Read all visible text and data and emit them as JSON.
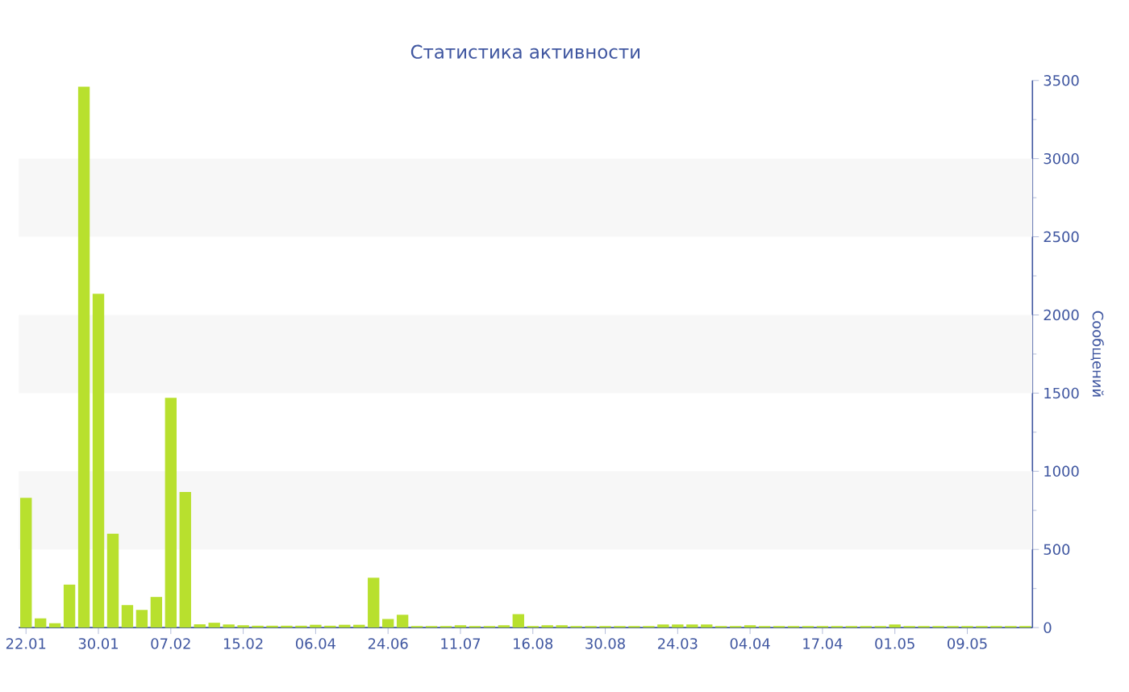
{
  "chart_data": {
    "type": "bar",
    "title": "Статистика активности",
    "ylabel": "Сообщений",
    "categories": [
      "22.01",
      null,
      null,
      null,
      null,
      "30.01",
      null,
      null,
      null,
      null,
      "07.02",
      null,
      null,
      null,
      null,
      "15.02",
      null,
      null,
      null,
      null,
      "06.04",
      null,
      null,
      null,
      null,
      "24.06",
      null,
      null,
      null,
      null,
      "11.07",
      null,
      null,
      null,
      null,
      "16.08",
      null,
      null,
      null,
      null,
      "30.08",
      null,
      null,
      null,
      null,
      "24.03",
      null,
      null,
      null,
      null,
      "04.04",
      null,
      null,
      null,
      null,
      "17.04",
      null,
      null,
      null,
      null,
      "01.05",
      null,
      null,
      null,
      null,
      "09.05",
      null,
      null,
      null,
      null
    ],
    "values": [
      830,
      59,
      28,
      275,
      3460,
      2135,
      600,
      144,
      113,
      196,
      1470,
      868,
      21,
      31,
      20,
      15,
      12,
      12,
      12,
      12,
      18,
      12,
      18,
      18,
      319,
      55,
      82,
      10,
      10,
      10,
      15,
      10,
      10,
      15,
      86,
      10,
      15,
      15,
      10,
      10,
      10,
      10,
      10,
      10,
      20,
      20,
      20,
      20,
      10,
      10,
      15,
      10,
      10,
      10,
      10,
      10,
      10,
      10,
      10,
      10,
      20,
      10,
      10,
      10,
      10,
      10,
      10,
      10,
      10,
      10
    ],
    "color": "#b8e02e",
    "ylim": [
      0,
      3500
    ],
    "yticks": [
      0,
      500,
      1000,
      1500,
      2000,
      2500,
      3000,
      3500
    ],
    "bands": [
      {
        "axis": "y",
        "from": 500,
        "to": 1000,
        "color": "#f7f7f7"
      },
      {
        "axis": "y",
        "from": 1500,
        "to": 2000,
        "color": "#f7f7f7"
      },
      {
        "axis": "y",
        "from": 2500,
        "to": 3000,
        "color": "#f7f7f7"
      }
    ]
  }
}
